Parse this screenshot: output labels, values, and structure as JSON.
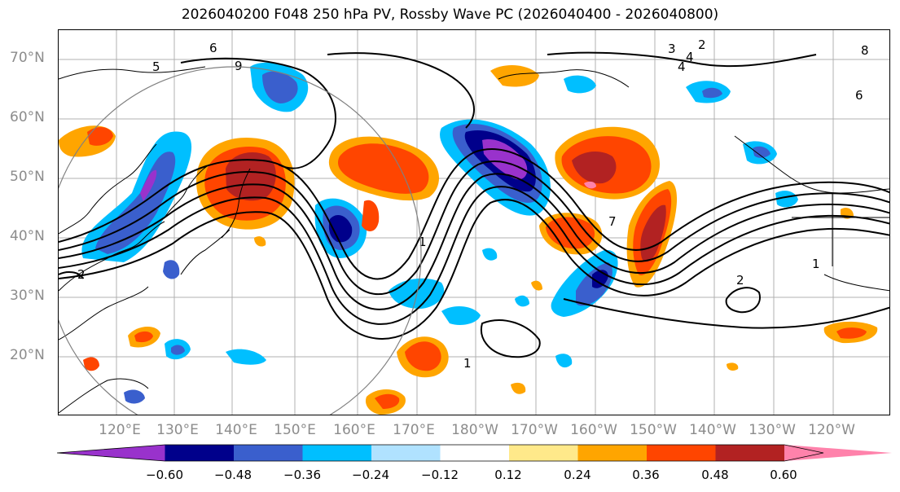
{
  "title": "2026040200 F048 250 hPa PV, Rossby Wave PC (2026040400 - 2026040800)",
  "lat_labels": [
    "70°N",
    "60°N",
    "50°N",
    "40°N",
    "30°N",
    "20°N"
  ],
  "lon_labels": [
    "120°E",
    "130°E",
    "140°E",
    "150°E",
    "160°E",
    "170°E",
    "180°W",
    "170°W",
    "160°W",
    "150°W",
    "140°W",
    "130°W",
    "120°W"
  ],
  "colorbar": {
    "colors": [
      "#9932cc",
      "#00008b",
      "#3a5fcd",
      "#00bfff",
      "#b0e2ff",
      "#ffffff",
      "#ffe98a",
      "#ffa500",
      "#ff4500",
      "#b22222",
      "#ff82ab"
    ],
    "tick_labels": [
      "−0.60",
      "−0.48",
      "−0.36",
      "−0.24",
      "−0.12",
      "0.12",
      "0.24",
      "0.36",
      "0.48",
      "0.60"
    ]
  },
  "contour_labels": [
    "2",
    "3",
    "4",
    "5",
    "6",
    "8",
    "9",
    "1",
    "1",
    "2",
    "7",
    "6",
    "4",
    "1",
    "2"
  ]
}
